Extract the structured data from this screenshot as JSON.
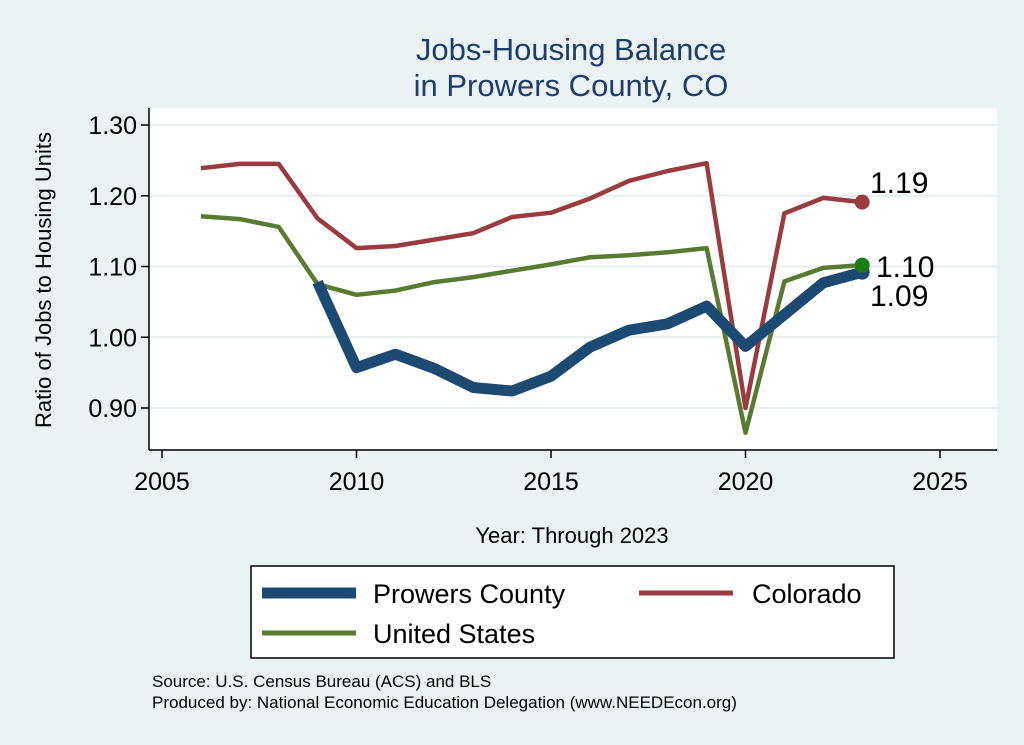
{
  "chart_data": {
    "type": "line",
    "title": [
      "Jobs-Housing Balance",
      "in Prowers County, CO"
    ],
    "xlabel": "Year: Through 2023",
    "ylabel": "Ratio of Jobs to Housing Units",
    "xlim": [
      2005,
      2026.5
    ],
    "ylim": [
      0.86,
      1.32
    ],
    "xticks": [
      2005,
      2010,
      2015,
      2020,
      2025
    ],
    "yticks": [
      0.9,
      1.0,
      1.1,
      1.2,
      1.3
    ],
    "ytick_labels": [
      "0.90",
      "1.00",
      "1.10",
      "1.20",
      "1.30"
    ],
    "grid": true,
    "legend_position": "bottom",
    "series": [
      {
        "name": "Prowers County",
        "color": "#1c4a73",
        "x": [
          2009,
          2010,
          2011,
          2012,
          2013,
          2014,
          2015,
          2016,
          2017,
          2018,
          2019,
          2020,
          2021,
          2022,
          2023
        ],
        "y": [
          1.078,
          0.957,
          0.976,
          0.956,
          0.929,
          0.924,
          0.945,
          0.986,
          1.01,
          1.019,
          1.044,
          0.987,
          1.032,
          1.077,
          1.092
        ],
        "end_label": "1.09"
      },
      {
        "name": "Colorado",
        "color": "#9a3b3f",
        "x": [
          2006,
          2007,
          2008,
          2009,
          2010,
          2011,
          2012,
          2013,
          2014,
          2015,
          2016,
          2017,
          2018,
          2019,
          2020,
          2021,
          2022,
          2023
        ],
        "y": [
          1.239,
          1.245,
          1.245,
          1.168,
          1.126,
          1.129,
          1.138,
          1.147,
          1.17,
          1.176,
          1.196,
          1.221,
          1.235,
          1.246,
          0.9,
          1.175,
          1.197,
          1.191
        ],
        "end_label": "1.19"
      },
      {
        "name": "United States",
        "color": "#5a7a31",
        "x": [
          2006,
          2007,
          2008,
          2009,
          2010,
          2011,
          2012,
          2013,
          2014,
          2015,
          2016,
          2017,
          2018,
          2019,
          2020,
          2021,
          2022,
          2023
        ],
        "y": [
          1.171,
          1.167,
          1.156,
          1.075,
          1.06,
          1.066,
          1.078,
          1.085,
          1.094,
          1.103,
          1.113,
          1.116,
          1.12,
          1.126,
          0.865,
          1.079,
          1.098,
          1.102
        ],
        "end_label": "1.10",
        "end_marker_color": "#1a7d16"
      }
    ],
    "legend": [
      "Prowers County",
      "Colorado",
      "United States"
    ]
  },
  "source_lines": [
    "Source: U.S. Census Bureau (ACS) and BLS",
    "Produced by: National Economic Education Delegation (www.NEEDEcon.org)"
  ]
}
